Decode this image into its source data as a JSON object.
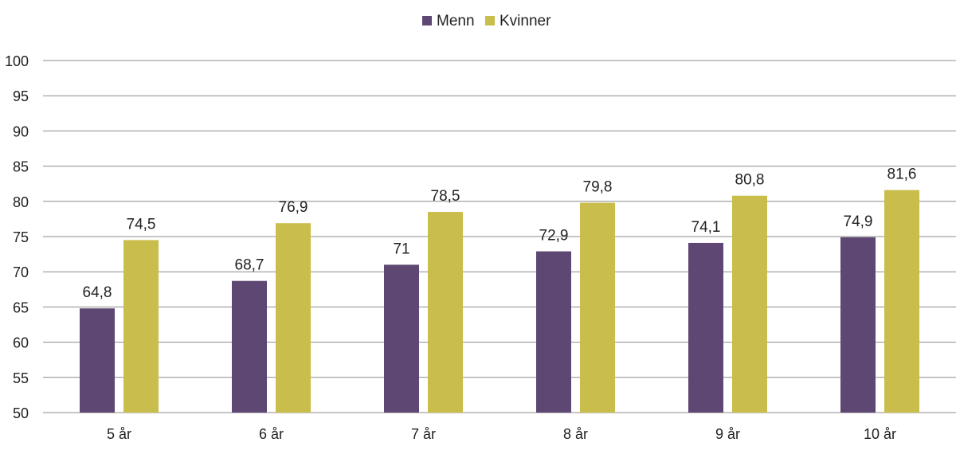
{
  "chart_data": {
    "type": "bar",
    "categories": [
      "5 år",
      "6 år",
      "7 år",
      "8 år",
      "9 år",
      "10 år"
    ],
    "series": [
      {
        "name": "Menn",
        "color": "#5e4772",
        "values": [
          64.8,
          68.7,
          71,
          72.9,
          74.1,
          74.9
        ],
        "labels": [
          "64,8",
          "68,7",
          "71",
          "72,9",
          "74,1",
          "74,9"
        ]
      },
      {
        "name": "Kvinner",
        "color": "#c9bd4b",
        "values": [
          74.5,
          76.9,
          78.5,
          79.8,
          80.8,
          81.6
        ],
        "labels": [
          "74,5",
          "76,9",
          "78,5",
          "79,8",
          "80,8",
          "81,6"
        ]
      }
    ],
    "ylim": [
      50,
      100
    ],
    "yticks": [
      50,
      55,
      60,
      65,
      70,
      75,
      80,
      85,
      90,
      95,
      100
    ],
    "legend_position": "top-center",
    "grid": true
  }
}
